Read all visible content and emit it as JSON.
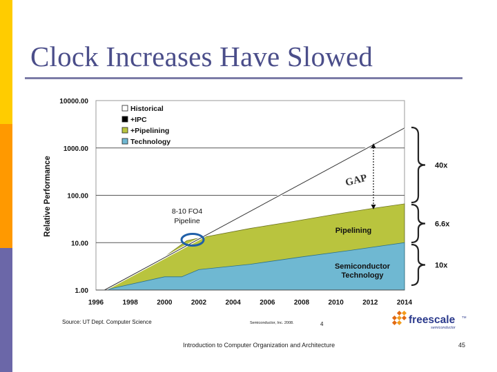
{
  "slide": {
    "title": "Clock Increases Have Slowed",
    "footer": "Introduction to Computer Organization and Architecture",
    "page_number": "45",
    "bar_colors": [
      "#ffcc00",
      "#ff9900",
      "#6b67a8"
    ]
  },
  "chart_data": {
    "type": "area",
    "ylabel": "Relative Performance",
    "y_scale": "log",
    "ylim": [
      1,
      10000
    ],
    "y_ticks": [
      "1.00",
      "10.00",
      "100.00",
      "1000.00",
      "10000.00"
    ],
    "x_ticks": [
      "1996",
      "1998",
      "2000",
      "2002",
      "2004",
      "2006",
      "2008",
      "2010",
      "2012",
      "2014"
    ],
    "xlim": [
      1996,
      2014
    ],
    "series": [
      {
        "name": "Technology",
        "color": "#6fb8d2",
        "points": [
          [
            1996.5,
            1.0
          ],
          [
            2000,
            1.9
          ],
          [
            2001,
            1.9
          ],
          [
            2002,
            2.7
          ],
          [
            2005,
            3.5
          ],
          [
            2008,
            5.0
          ],
          [
            2011,
            7.0
          ],
          [
            2014,
            10.0
          ]
        ]
      },
      {
        "name": "+Pipelining",
        "color": "#b9c43e",
        "points": [
          [
            1996.5,
            1.0
          ],
          [
            2000,
            5.0
          ],
          [
            2001.3,
            11.0
          ],
          [
            2002,
            12.5
          ],
          [
            2005,
            20
          ],
          [
            2007.5,
            28
          ],
          [
            2010,
            40
          ],
          [
            2012,
            52
          ],
          [
            2014,
            66
          ]
        ]
      },
      {
        "name": "+IPC",
        "color": "#000000",
        "points": []
      },
      {
        "name": "Historical",
        "color": "#ffffff",
        "points": [
          [
            1996.5,
            1.0
          ],
          [
            2014,
            2640
          ]
        ]
      }
    ],
    "legend": [
      "Historical",
      "+IPC",
      "+Pipelining",
      "Technology"
    ],
    "legend_position": "top-left",
    "annotations": {
      "gap": "GAP",
      "fo4_line1": "8-10 FO4",
      "fo4_line2": "Pipeline",
      "pipelining": "Pipelining",
      "semi_line1": "Semiconductor",
      "semi_line2": "Technology",
      "brace_top": "40x",
      "brace_mid": "6.6x",
      "brace_bot": "10x"
    },
    "source": "Source: UT Dept. Computer Science",
    "copyright": "Semiconductor, Inc. 2008.",
    "inner_page": "4",
    "logo": {
      "name": "freescale",
      "tm": "TM",
      "sub": "semiconductor"
    }
  }
}
